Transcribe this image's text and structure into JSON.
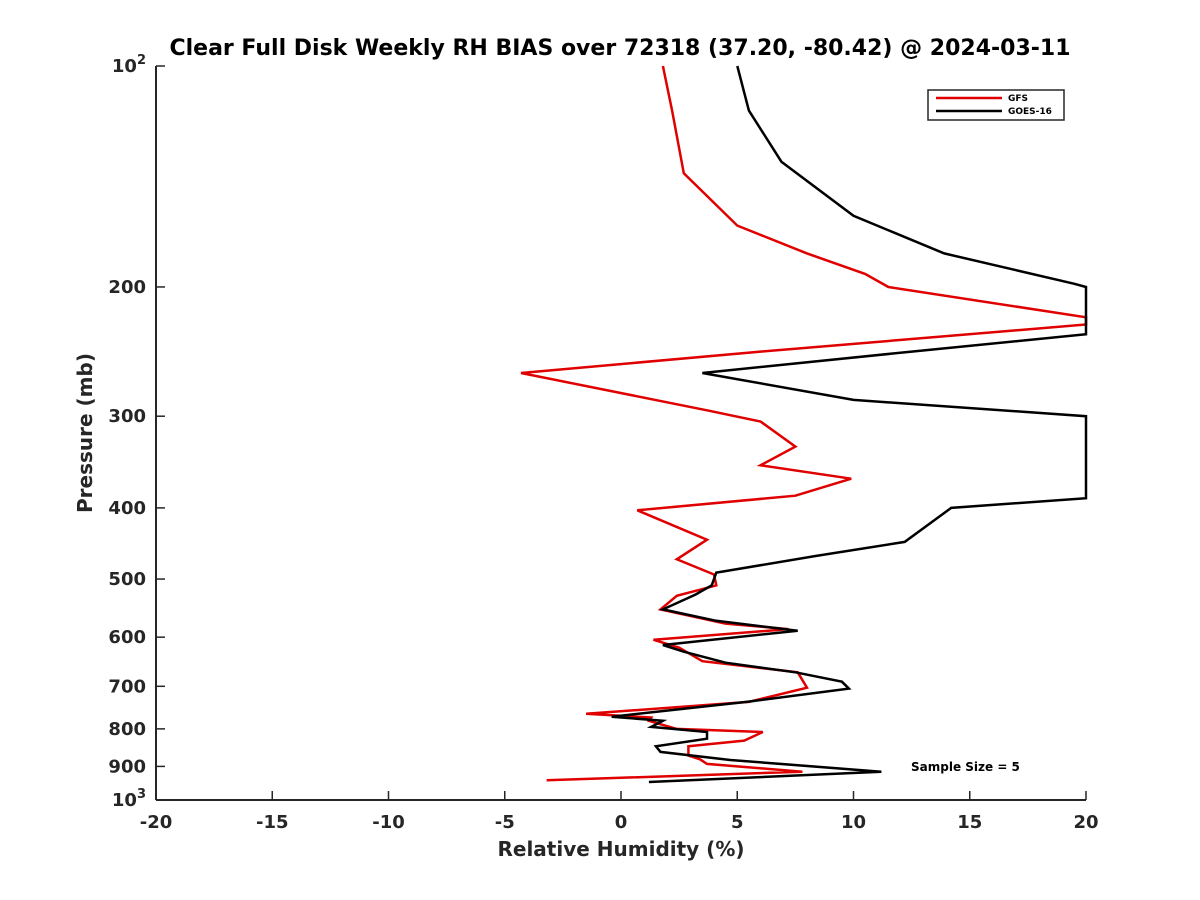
{
  "chart_data": {
    "type": "line",
    "title": "Clear Full Disk Weekly RH BIAS over 72318 (37.20, -80.42) @ 2024-03-11",
    "xlabel": "Relative Humidity (%)",
    "ylabel": "Pressure (mb)",
    "xlim": [
      -20,
      20
    ],
    "ylim": [
      100,
      1000
    ],
    "yscale": "log",
    "y_reversed": true,
    "grid": false,
    "legend_position": "top-right",
    "x_ticks": [
      -20,
      -15,
      -10,
      -5,
      0,
      5,
      10,
      15,
      20
    ],
    "x_tick_labels": [
      "-20",
      "-15",
      "-10",
      "-5",
      "0",
      "5",
      "10",
      "15",
      "20"
    ],
    "y_ticks": [
      100,
      200,
      300,
      400,
      500,
      600,
      700,
      800,
      900,
      1000
    ],
    "y_tick_labels": [
      "10^2",
      "200",
      "300",
      "400",
      "500",
      "600",
      "700",
      "800",
      "900",
      "10^3"
    ],
    "annotation": "Sample Size = 5",
    "series": [
      {
        "name": "GFS",
        "color": "#e00000",
        "points": [
          [
            1.8,
            100
          ],
          [
            2.2,
            115
          ],
          [
            2.7,
            140
          ],
          [
            5.0,
            165
          ],
          [
            8.0,
            180
          ],
          [
            10.5,
            192
          ],
          [
            11.5,
            200
          ],
          [
            20.0,
            220
          ],
          [
            20.0,
            225
          ],
          [
            6.0,
            245
          ],
          [
            -4.3,
            262
          ],
          [
            3.8,
            295
          ],
          [
            6.0,
            305
          ],
          [
            7.5,
            330
          ],
          [
            6.0,
            350
          ],
          [
            9.9,
            365
          ],
          [
            7.5,
            385
          ],
          [
            0.7,
            403
          ],
          [
            3.7,
            442
          ],
          [
            2.4,
            470
          ],
          [
            4.0,
            493
          ],
          [
            4.1,
            510
          ],
          [
            2.4,
            527
          ],
          [
            1.7,
            550
          ],
          [
            4.5,
            575
          ],
          [
            7.2,
            585
          ],
          [
            1.4,
            605
          ],
          [
            2.5,
            620
          ],
          [
            3.5,
            647
          ],
          [
            7.6,
            670
          ],
          [
            8.0,
            703
          ],
          [
            5.5,
            735
          ],
          [
            -1.5,
            763
          ],
          [
            1.3,
            772
          ],
          [
            1.2,
            780
          ],
          [
            1.8,
            790
          ],
          [
            2.4,
            800
          ],
          [
            6.1,
            808
          ],
          [
            5.3,
            830
          ],
          [
            2.9,
            845
          ],
          [
            2.9,
            870
          ],
          [
            3.4,
            880
          ],
          [
            3.7,
            893
          ],
          [
            7.8,
            915
          ],
          [
            -3.2,
            940
          ]
        ]
      },
      {
        "name": "GOES-16",
        "color": "#000000",
        "points": [
          [
            5.0,
            100
          ],
          [
            5.5,
            115
          ],
          [
            6.9,
            135
          ],
          [
            10.0,
            160
          ],
          [
            13.9,
            180
          ],
          [
            19.5,
            198
          ],
          [
            20.0,
            200
          ],
          [
            20.0,
            232
          ],
          [
            12.5,
            245
          ],
          [
            3.5,
            262
          ],
          [
            10.0,
            285
          ],
          [
            20.0,
            300
          ],
          [
            20.0,
            388
          ],
          [
            14.2,
            400
          ],
          [
            12.2,
            445
          ],
          [
            8.4,
            465
          ],
          [
            4.1,
            490
          ],
          [
            3.9,
            510
          ],
          [
            3.2,
            525
          ],
          [
            1.8,
            550
          ],
          [
            4.1,
            570
          ],
          [
            7.6,
            588
          ],
          [
            1.8,
            615
          ],
          [
            2.7,
            628
          ],
          [
            4.5,
            650
          ],
          [
            7.5,
            670
          ],
          [
            9.5,
            690
          ],
          [
            9.8,
            705
          ],
          [
            5.4,
            735
          ],
          [
            -0.4,
            770
          ],
          [
            1.8,
            780
          ],
          [
            1.3,
            795
          ],
          [
            3.7,
            808
          ],
          [
            3.7,
            825
          ],
          [
            1.5,
            845
          ],
          [
            1.7,
            860
          ],
          [
            4.7,
            882
          ],
          [
            11.2,
            915
          ],
          [
            1.2,
            945
          ]
        ]
      }
    ]
  }
}
